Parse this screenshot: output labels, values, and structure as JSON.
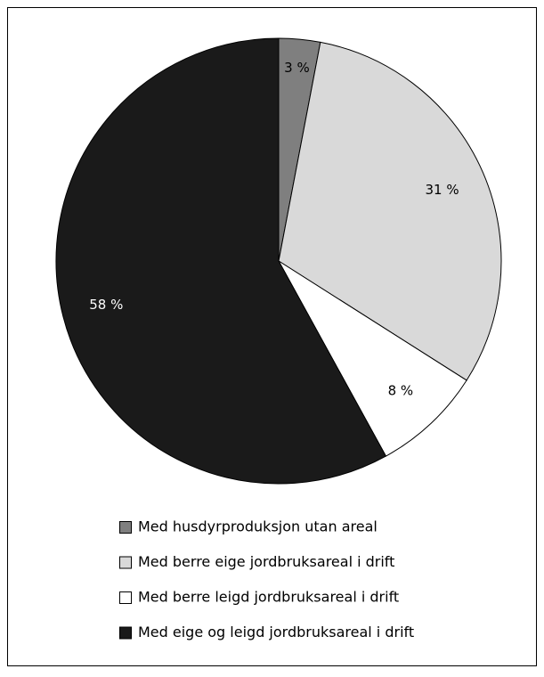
{
  "chart_data": {
    "type": "pie",
    "categories": [
      "Med husdyrproduksjon utan areal",
      "Med berre eige jordbruksareal i drift",
      "Med berre leigd jordbruksareal i drift",
      "Med eige og leigd jordbruksareal i drift"
    ],
    "values": [
      3,
      31,
      8,
      58
    ],
    "value_labels": [
      "3 %",
      "31 %",
      "8 %",
      "58 %"
    ],
    "colors": [
      "#7f7f7f",
      "#d9d9d9",
      "#ffffff",
      "#1a1a1a"
    ]
  }
}
